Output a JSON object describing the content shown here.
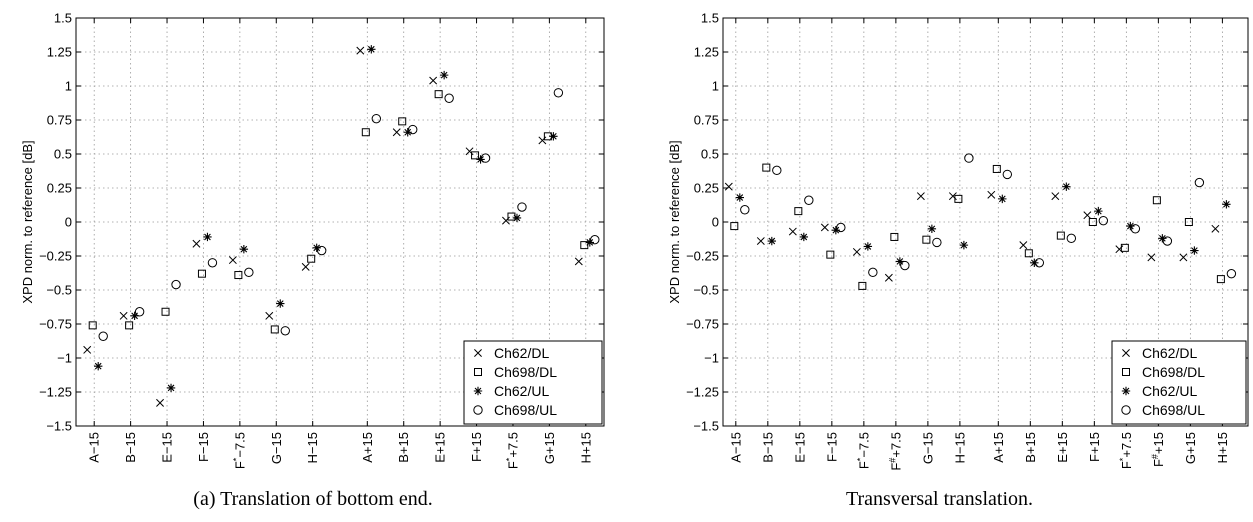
{
  "chart_data": [
    {
      "type": "scatter",
      "ylabel": "XPD norm. to reference [dB]",
      "ylim": [
        -1.5,
        1.5
      ],
      "yticks": [
        -1.5,
        -1.25,
        -1,
        -0.75,
        -0.5,
        -0.25,
        0,
        0.25,
        0.5,
        0.75,
        1,
        1.25,
        1.5
      ],
      "ytick_labels": [
        "−1.5",
        "−1.25",
        "−1",
        "−0.75",
        "−0.5",
        "−0.25",
        "0",
        "0.25",
        "0.5",
        "0.75",
        "1",
        "1.25",
        "1.5"
      ],
      "grid": true,
      "legend": "bottom-right",
      "categories": [
        "A−15",
        "B−15",
        "E−15",
        "F−15",
        "F*−7.5",
        "G−15",
        "H−15",
        "A+15",
        "B+15",
        "E+15",
        "F+15",
        "F*+7.5",
        "G+15",
        "H+15"
      ],
      "category_x": [
        1,
        2,
        3,
        4,
        5,
        6,
        7,
        8.5,
        9.5,
        10.5,
        11.5,
        12.5,
        13.5,
        14.5
      ],
      "xlim": [
        0.5,
        15
      ],
      "series": [
        {
          "name": "Ch62/DL",
          "marker": "x",
          "values": [
            -0.94,
            -0.69,
            -1.33,
            -0.16,
            -0.28,
            -0.69,
            -0.33,
            1.26,
            0.66,
            1.04,
            0.52,
            0.01,
            0.6,
            -0.29
          ]
        },
        {
          "name": "Ch698/DL",
          "marker": "square",
          "values": [
            -0.76,
            -0.76,
            -0.66,
            -0.38,
            -0.39,
            -0.79,
            -0.27,
            0.66,
            0.74,
            0.94,
            0.49,
            0.04,
            0.63,
            -0.17
          ]
        },
        {
          "name": "Ch62/UL",
          "marker": "star",
          "values": [
            -1.06,
            -0.69,
            -1.22,
            -0.11,
            -0.2,
            -0.6,
            -0.19,
            1.27,
            0.66,
            1.08,
            0.46,
            0.03,
            0.63,
            -0.15
          ]
        },
        {
          "name": "Ch698/UL",
          "marker": "circle",
          "values": [
            -0.84,
            -0.66,
            -0.46,
            -0.3,
            -0.37,
            -0.8,
            -0.21,
            0.76,
            0.68,
            0.91,
            0.47,
            0.11,
            0.95,
            -0.13
          ]
        }
      ]
    },
    {
      "type": "scatter",
      "ylabel": "XPD norm. to reference [dB]",
      "ylim": [
        -1.5,
        1.5
      ],
      "yticks": [
        -1.5,
        -1.25,
        -1,
        -0.75,
        -0.5,
        -0.25,
        0,
        0.25,
        0.5,
        0.75,
        1,
        1.25,
        1.5
      ],
      "ytick_labels": [
        "−1.5",
        "−1.25",
        "−1",
        "−0.75",
        "−0.5",
        "−0.25",
        "0",
        "0.25",
        "0.5",
        "0.75",
        "1",
        "1.25",
        "1.5"
      ],
      "grid": true,
      "legend": "bottom-right",
      "categories": [
        "A−15",
        "B−15",
        "E−15",
        "F−15",
        "F*−7.5",
        "F#+7.5",
        "G−15",
        "H−15",
        "A+15",
        "B+15",
        "E+15",
        "F+15",
        "F*+7.5",
        "F#+15",
        "G+15",
        "H+15"
      ],
      "category_x": [
        1,
        2,
        3,
        4,
        5,
        6,
        7,
        8,
        9.2,
        10.2,
        11.2,
        12.2,
        13.2,
        14.2,
        15.2,
        16.2
      ],
      "xlim": [
        0.6,
        17
      ],
      "series": [
        {
          "name": "Ch62/DL",
          "marker": "x",
          "values": [
            0.26,
            -0.14,
            -0.07,
            -0.04,
            -0.22,
            -0.41,
            0.19,
            0.19,
            0.2,
            -0.17,
            0.19,
            0.05,
            -0.2,
            -0.26,
            -0.26,
            -0.05
          ]
        },
        {
          "name": "Ch698/DL",
          "marker": "square",
          "values": [
            -0.03,
            0.4,
            0.08,
            -0.24,
            -0.47,
            -0.11,
            -0.13,
            0.17,
            0.39,
            -0.23,
            -0.1,
            0.0,
            -0.19,
            0.16,
            0.0,
            -0.42
          ]
        },
        {
          "name": "Ch62/UL",
          "marker": "star",
          "values": [
            0.18,
            -0.14,
            -0.11,
            -0.06,
            -0.18,
            -0.29,
            -0.05,
            -0.17,
            0.17,
            -0.3,
            0.26,
            0.08,
            -0.03,
            -0.12,
            -0.21,
            0.13
          ]
        },
        {
          "name": "Ch698/UL",
          "marker": "circle",
          "values": [
            0.09,
            0.38,
            0.16,
            -0.04,
            -0.37,
            -0.32,
            -0.15,
            0.47,
            0.35,
            -0.3,
            -0.12,
            0.01,
            -0.05,
            -0.14,
            0.29,
            -0.38
          ]
        }
      ]
    }
  ],
  "captions": [
    "(a) Translation of bottom end.",
    "Transversal translation."
  ]
}
